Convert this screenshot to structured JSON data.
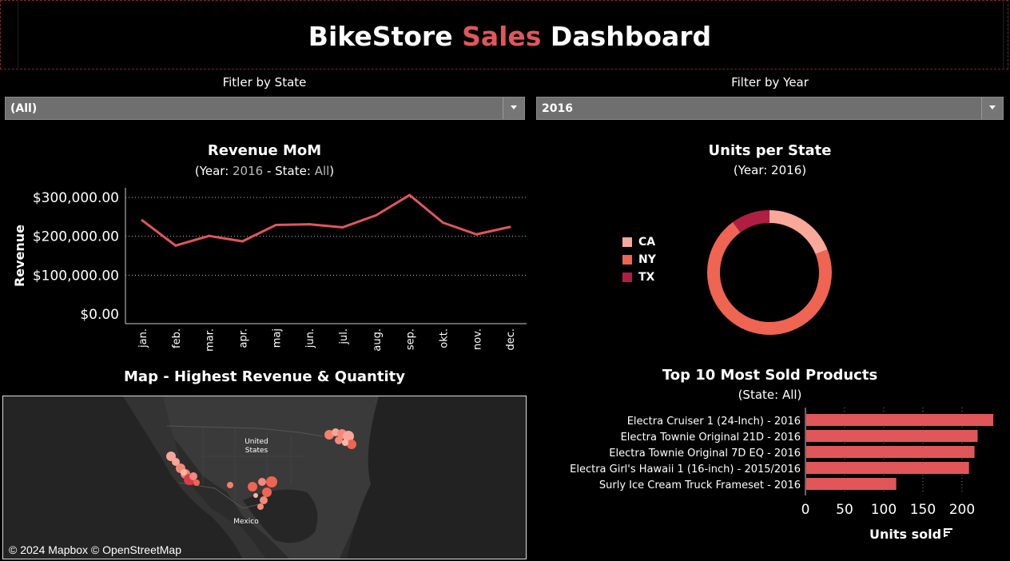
{
  "header": {
    "title_part1": "BikeStore ",
    "title_accent": "Sales",
    "title_part2": " Dashboard",
    "accent_color": "#e15759"
  },
  "filters": {
    "state": {
      "label": "Fitler by State",
      "value": "(All)"
    },
    "year": {
      "label": "Filter by Year",
      "value": "2016"
    }
  },
  "revenue_chart": {
    "title": "Revenue MoM",
    "subtitle_prefix": "(Year: ",
    "subtitle_year": "2016",
    "subtitle_mid": " - State: ",
    "subtitle_state": "All",
    "subtitle_suffix": ")"
  },
  "units_chart": {
    "title": "Units per State",
    "subtitle": "(Year: 2016)"
  },
  "map": {
    "title": "Map - Highest Revenue & Quantity",
    "label_country": "United",
    "label_country2": "States",
    "label_mexico": "Mexico",
    "credit": "© 2024 Mapbox © OpenStreetMap"
  },
  "products_chart": {
    "title": "Top 10 Most Sold Products",
    "subtitle": "(State: All)"
  },
  "chart_data": [
    {
      "type": "line",
      "title": "Revenue MoM",
      "ylabel": "Revenue",
      "xlabel": "",
      "x": [
        "jan.",
        "feb.",
        "mar.",
        "apr.",
        "maj",
        "jun.",
        "jul.",
        "aug.",
        "sep.",
        "okt.",
        "nov.",
        "dec."
      ],
      "series": [
        {
          "values": [
            241000,
            176000,
            201000,
            187000,
            229000,
            231000,
            223000,
            254000,
            306000,
            235000,
            205000,
            224000
          ]
        }
      ],
      "ylim": [
        0,
        340000
      ],
      "yticks": [
        0,
        100000,
        200000,
        300000
      ],
      "ytick_labels": [
        "$0.00",
        "$100,000.00",
        "$200,000.00",
        "$300,000.00"
      ],
      "grid": true,
      "color": "#e15759"
    },
    {
      "type": "pie",
      "title": "Units per State",
      "donut": true,
      "categories": [
        "CA",
        "NY",
        "TX"
      ],
      "values": [
        19,
        71,
        10
      ],
      "colors": [
        "#f9a89a",
        "#f06452",
        "#b01e44"
      ],
      "legend_position": "left"
    },
    {
      "type": "bar",
      "orientation": "horizontal",
      "title": "Top 10 Most Sold Products",
      "categories": [
        "Electra Cruiser 1 (24-Inch) - 2016",
        "Electra Townie Original 21D - 2016",
        "Electra Townie Original 7D EQ - 2016",
        "Electra Girl's Hawaii 1 (16-inch) - 2015/2016",
        "Surly Ice Cream Truck Frameset - 2016"
      ],
      "values": [
        240,
        220,
        216,
        209,
        116
      ],
      "xlabel": "Units sold",
      "xlim": [
        0,
        245
      ],
      "xticks": [
        0,
        50,
        100,
        150,
        200
      ],
      "grid": true,
      "color": "#e15759"
    }
  ]
}
